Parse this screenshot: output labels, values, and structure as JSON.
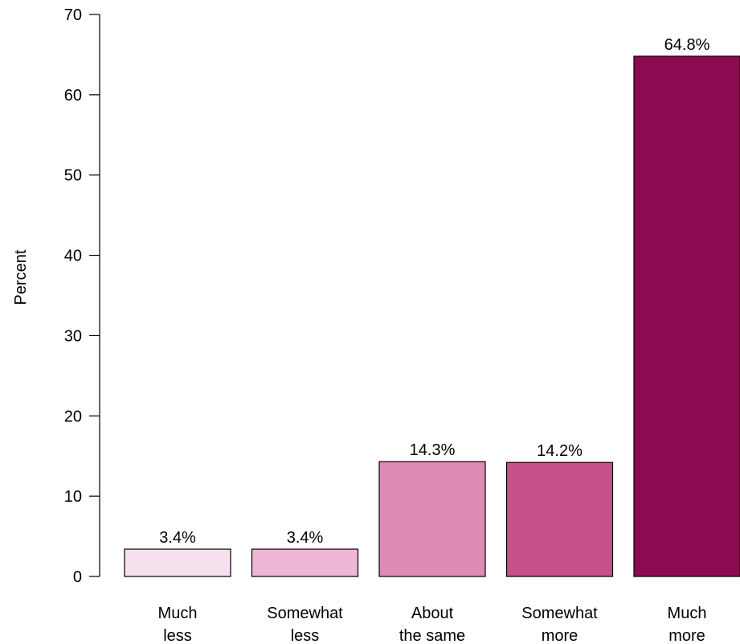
{
  "chart_data": {
    "type": "bar",
    "title": "",
    "xlabel": "",
    "ylabel": "Percent",
    "ylim": [
      0,
      70
    ],
    "yticks": [
      0,
      10,
      20,
      30,
      40,
      50,
      60,
      70
    ],
    "grid": false,
    "categories": [
      [
        "Much",
        "less"
      ],
      [
        "Somewhat",
        "less"
      ],
      [
        "About",
        "the same"
      ],
      [
        "Somewhat",
        "more"
      ],
      [
        "Much",
        "more"
      ]
    ],
    "values": [
      3.4,
      3.4,
      14.3,
      14.2,
      64.8
    ],
    "value_labels": [
      "3.4%",
      "3.4%",
      "14.3%",
      "14.2%",
      "64.8%"
    ],
    "colors": [
      "#f7e1ee",
      "#efb6d5",
      "#e08bb5",
      "#c85089",
      "#8b0a50"
    ],
    "edge_color": "#000000"
  }
}
